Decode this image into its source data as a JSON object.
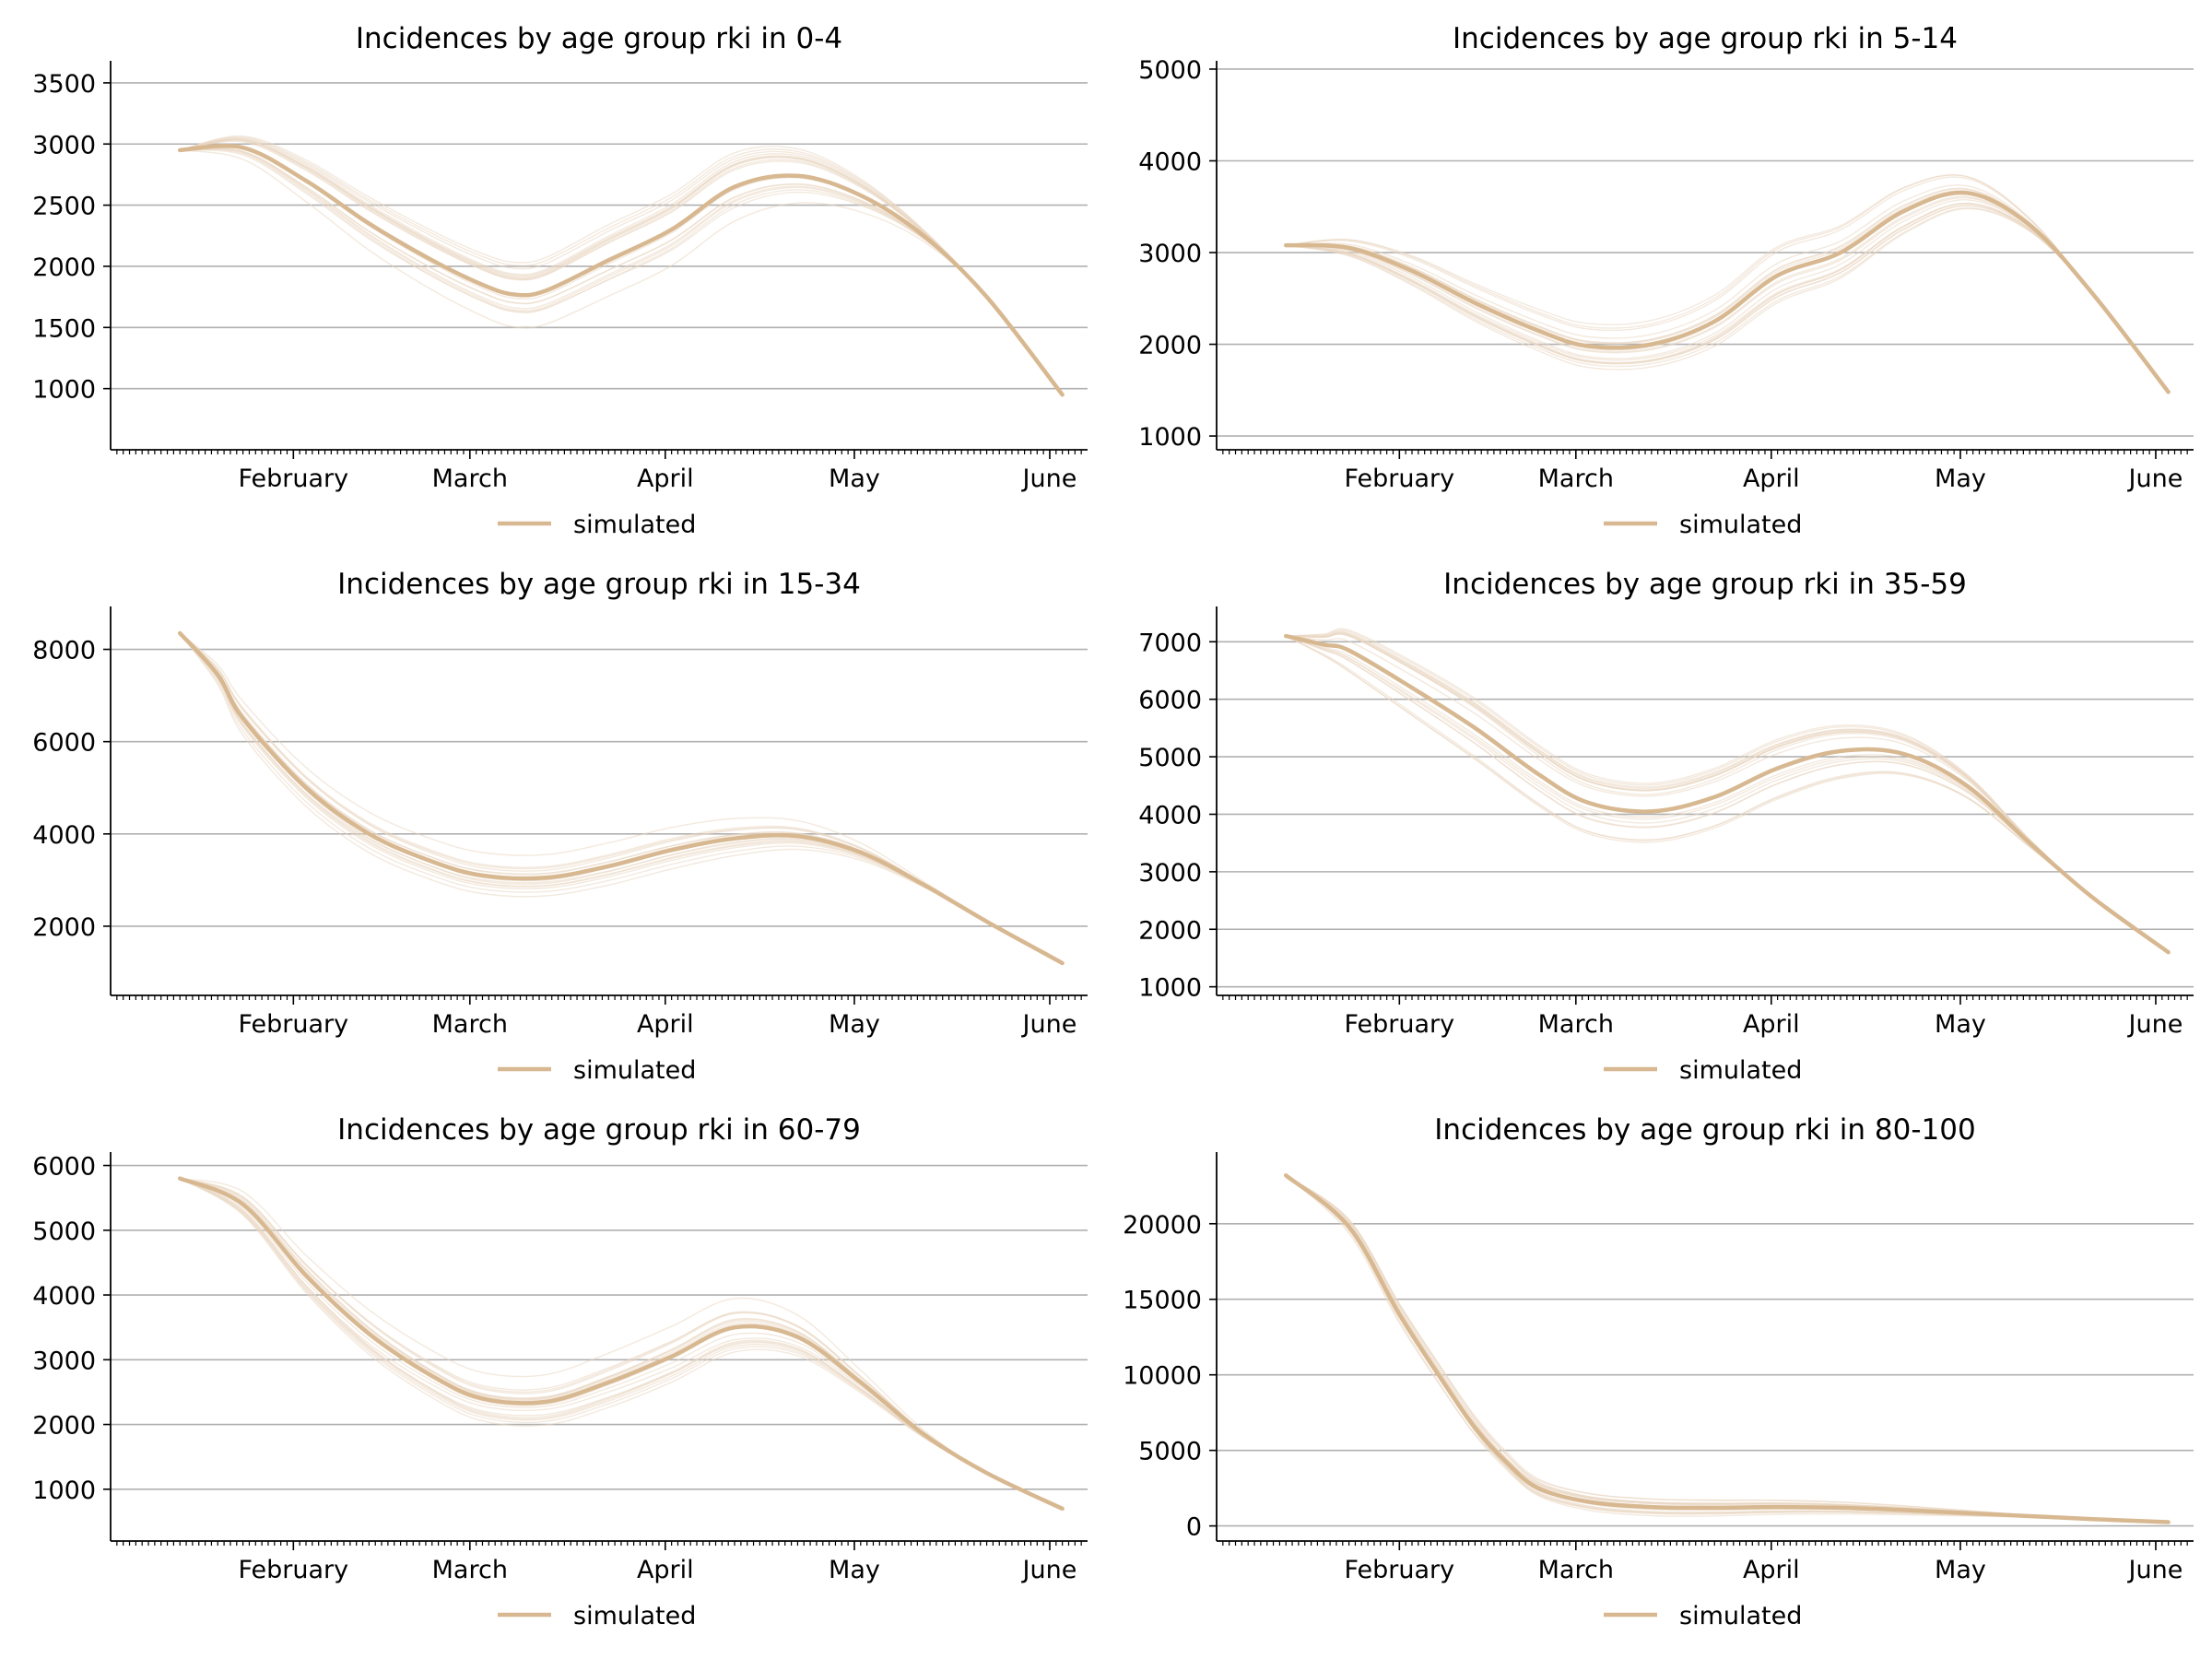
{
  "figure": {
    "months": [
      "February",
      "March",
      "April",
      "May",
      "June"
    ],
    "legend_label": "simulated",
    "colors": {
      "main_line": "#d7b891",
      "sim_lines": "#ead7c2",
      "grid": "#b0b0b0",
      "axis": "#000000"
    }
  },
  "chart_data": [
    {
      "type": "line",
      "title": "Incidences by age group rki in 0-4",
      "xlabel": "",
      "ylabel": "",
      "grid": "horizontal",
      "legend": "below",
      "yticks": [
        1000,
        1500,
        2000,
        2500,
        3000,
        3500
      ],
      "ylim": [
        500,
        3650
      ],
      "xlim": [
        "2021-01-03",
        "2021-06-07"
      ],
      "series": [
        {
          "name": "simulated",
          "x": [
            "2021-01-14",
            "2021-01-24",
            "2021-02-03",
            "2021-02-13",
            "2021-02-23",
            "2021-03-03",
            "2021-03-08",
            "2021-03-13",
            "2021-03-23",
            "2021-04-02",
            "2021-04-12",
            "2021-04-22",
            "2021-05-02",
            "2021-05-12",
            "2021-05-22",
            "2021-06-03"
          ],
          "values": [
            2950,
            2970,
            2700,
            2350,
            2050,
            1850,
            1770,
            1800,
            2050,
            2300,
            2650,
            2740,
            2580,
            2250,
            1750,
            950
          ]
        }
      ]
    },
    {
      "type": "line",
      "title": "Incidences by age group rki in 5-14",
      "xlabel": "",
      "ylabel": "",
      "grid": "horizontal",
      "legend": "below",
      "yticks": [
        1000,
        2000,
        3000,
        4000,
        5000
      ],
      "ylim": [
        850,
        5050
      ],
      "xlim": [
        "2021-01-03",
        "2021-06-07"
      ],
      "series": [
        {
          "name": "simulated",
          "x": [
            "2021-01-14",
            "2021-01-24",
            "2021-02-03",
            "2021-02-13",
            "2021-02-23",
            "2021-03-03",
            "2021-03-13",
            "2021-03-23",
            "2021-04-02",
            "2021-04-12",
            "2021-04-22",
            "2021-05-02",
            "2021-05-12",
            "2021-05-22",
            "2021-06-03"
          ],
          "values": [
            3080,
            3050,
            2800,
            2450,
            2150,
            1980,
            2000,
            2250,
            2750,
            3000,
            3450,
            3650,
            3300,
            2550,
            1480
          ]
        }
      ]
    },
    {
      "type": "line",
      "title": "Incidences by age group rki in 15-34",
      "xlabel": "",
      "ylabel": "",
      "grid": "horizontal",
      "legend": "below",
      "yticks": [
        2000,
        4000,
        6000,
        8000
      ],
      "ylim": [
        500,
        8850
      ],
      "xlim": [
        "2021-01-03",
        "2021-06-07"
      ],
      "series": [
        {
          "name": "simulated",
          "x": [
            "2021-01-14",
            "2021-01-20",
            "2021-01-24",
            "2021-02-03",
            "2021-02-13",
            "2021-02-23",
            "2021-03-03",
            "2021-03-13",
            "2021-03-23",
            "2021-04-02",
            "2021-04-12",
            "2021-04-22",
            "2021-05-02",
            "2021-05-12",
            "2021-05-22",
            "2021-06-03"
          ],
          "values": [
            8350,
            7450,
            6500,
            5000,
            4000,
            3400,
            3100,
            3050,
            3300,
            3650,
            3900,
            3950,
            3600,
            2900,
            2100,
            1200
          ]
        }
      ]
    },
    {
      "type": "line",
      "title": "Incidences by age group rki in 35-59",
      "xlabel": "",
      "ylabel": "",
      "grid": "horizontal",
      "legend": "below",
      "yticks": [
        1000,
        2000,
        3000,
        4000,
        5000,
        6000,
        7000
      ],
      "ylim": [
        850,
        7550
      ],
      "xlim": [
        "2021-01-03",
        "2021-06-07"
      ],
      "series": [
        {
          "name": "simulated",
          "x": [
            "2021-01-14",
            "2021-01-20",
            "2021-01-24",
            "2021-02-03",
            "2021-02-13",
            "2021-02-23",
            "2021-03-03",
            "2021-03-13",
            "2021-03-23",
            "2021-04-02",
            "2021-04-12",
            "2021-04-22",
            "2021-05-02",
            "2021-05-12",
            "2021-05-22",
            "2021-06-03"
          ],
          "values": [
            7100,
            6950,
            6850,
            6200,
            5500,
            4700,
            4200,
            4050,
            4300,
            4800,
            5100,
            5050,
            4500,
            3500,
            2550,
            1600
          ]
        }
      ]
    },
    {
      "type": "line",
      "title": "Incidences by age group rki in 60-79",
      "xlabel": "",
      "ylabel": "",
      "grid": "horizontal",
      "legend": "below",
      "yticks": [
        1000,
        2000,
        3000,
        4000,
        5000,
        6000
      ],
      "ylim": [
        200,
        6150
      ],
      "xlim": [
        "2021-01-03",
        "2021-06-07"
      ],
      "series": [
        {
          "name": "simulated",
          "x": [
            "2021-01-14",
            "2021-01-24",
            "2021-02-03",
            "2021-02-13",
            "2021-02-23",
            "2021-03-03",
            "2021-03-13",
            "2021-03-23",
            "2021-04-02",
            "2021-04-12",
            "2021-04-22",
            "2021-05-02",
            "2021-05-12",
            "2021-05-22",
            "2021-06-03"
          ],
          "values": [
            5800,
            5400,
            4300,
            3400,
            2750,
            2400,
            2350,
            2650,
            3050,
            3500,
            3350,
            2650,
            1850,
            1250,
            700
          ]
        }
      ]
    },
    {
      "type": "line",
      "title": "Incidences by age group rki in 80-100",
      "xlabel": "",
      "ylabel": "",
      "grid": "horizontal",
      "legend": "below",
      "yticks": [
        0,
        5000,
        10000,
        15000,
        20000
      ],
      "ylim": [
        -1000,
        24500
      ],
      "xlim": [
        "2021-01-03",
        "2021-06-07"
      ],
      "series": [
        {
          "name": "simulated",
          "x": [
            "2021-01-14",
            "2021-01-24",
            "2021-02-01",
            "2021-02-08",
            "2021-02-13",
            "2021-02-18",
            "2021-02-23",
            "2021-03-03",
            "2021-03-13",
            "2021-03-23",
            "2021-04-02",
            "2021-04-12",
            "2021-04-22",
            "2021-05-02",
            "2021-05-12",
            "2021-05-22",
            "2021-06-03"
          ],
          "values": [
            23200,
            19800,
            14000,
            9500,
            6500,
            4200,
            2500,
            1600,
            1250,
            1200,
            1250,
            1200,
            1050,
            850,
            650,
            450,
            250
          ]
        }
      ]
    }
  ]
}
